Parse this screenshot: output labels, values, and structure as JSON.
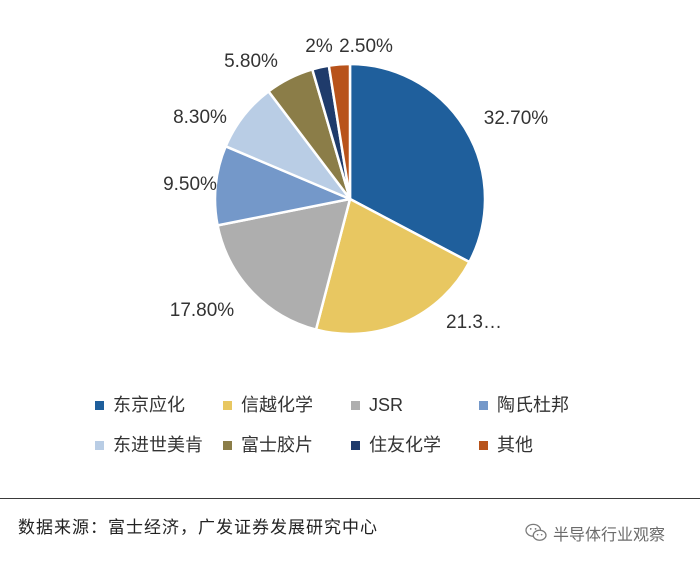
{
  "chart_data": {
    "type": "pie",
    "categories": [
      "东京应化",
      "信越化学",
      "JSR",
      "陶氏杜邦",
      "东进世美肯",
      "富士胶片",
      "住友化学",
      "其他"
    ],
    "values": [
      32.7,
      21.3,
      17.8,
      9.5,
      8.3,
      5.8,
      2.0,
      2.5
    ],
    "data_labels": [
      "32.70%",
      "21.3…",
      "17.80%",
      "9.50%",
      "8.30%",
      "5.80%",
      "2%",
      "2.50%"
    ],
    "colors": [
      "#1f5f9c",
      "#e8c761",
      "#aeaeae",
      "#7498c9",
      "#b9cde5",
      "#8b7d48",
      "#1f3b6b",
      "#b8531b"
    ],
    "legend_position": "bottom"
  },
  "source_text": "数据来源：富士经济，广发证券发展研究中心",
  "watermark_text": "半导体行业观察",
  "watermark_icon": "wechat-icon"
}
